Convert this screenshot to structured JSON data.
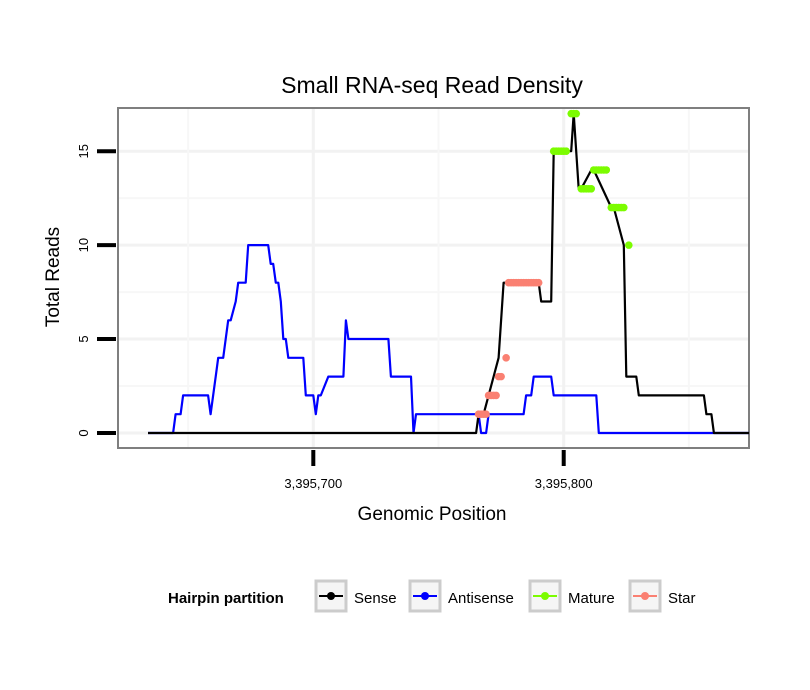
{
  "chart_data": {
    "type": "line",
    "title": "Small RNA-seq Read Density",
    "xlabel": "Genomic Position",
    "ylabel": "Total Reads",
    "xlim": [
      3395622,
      3395874
    ],
    "ylim": [
      -0.8,
      17.3
    ],
    "x_ticks": [
      {
        "value": 3395700,
        "label": "3,395,700"
      },
      {
        "value": 3395800,
        "label": "3,395,800"
      }
    ],
    "y_ticks": [
      {
        "value": 0,
        "label": "0"
      },
      {
        "value": 5,
        "label": "5"
      },
      {
        "value": 10,
        "label": "10"
      },
      {
        "value": 15,
        "label": "15"
      }
    ],
    "legend": {
      "title": "Hairpin partition",
      "position": "bottom",
      "entries": [
        {
          "label": "Sense",
          "color": "#000000"
        },
        {
          "label": "Antisense",
          "color": "#0000FF"
        },
        {
          "label": "Mature",
          "color": "#7CFC00"
        },
        {
          "label": "Star",
          "color": "#FA8072"
        }
      ]
    },
    "series": [
      {
        "name": "Sense",
        "color": "#000000",
        "x": [
          3395634,
          3395765,
          3395766,
          3395768,
          3395770,
          3395772,
          3395774,
          3395775,
          3395776,
          3395777,
          3395790,
          3395791,
          3395795,
          3395796,
          3395803,
          3395804,
          3395806,
          3395807,
          3395811,
          3395812,
          3395819,
          3395820,
          3395824,
          3395825,
          3395829,
          3395830,
          3395856,
          3395857,
          3395859,
          3395860,
          3395874
        ],
        "y": [
          0,
          0,
          1,
          1,
          2,
          3,
          4,
          6,
          8,
          8,
          8,
          7,
          7,
          15,
          15,
          17,
          13,
          13,
          14,
          14,
          12,
          12,
          10,
          3,
          3,
          2,
          2,
          1,
          1,
          0,
          0
        ]
      },
      {
        "name": "Antisense",
        "color": "#0000FF",
        "x": [
          3395634,
          3395644,
          3395645,
          3395647,
          3395648,
          3395658,
          3395659,
          3395661,
          3395662,
          3395664,
          3395665,
          3395666,
          3395667,
          3395669,
          3395670,
          3395673,
          3395674,
          3395682,
          3395683,
          3395684,
          3395685,
          3395686,
          3395687,
          3395688,
          3395689,
          3395690,
          3395691,
          3395696,
          3395697,
          3395700,
          3395701,
          3395702,
          3395703,
          3395706,
          3395707,
          3395712,
          3395713,
          3395714,
          3395715,
          3395730,
          3395731,
          3395739,
          3395740,
          3395741,
          3395766,
          3395767,
          3395769,
          3395770,
          3395784,
          3395785,
          3395787,
          3395788,
          3395795,
          3395796,
          3395797,
          3395798,
          3395813,
          3395814,
          3395874
        ],
        "y": [
          0,
          0,
          1,
          1,
          2,
          2,
          1,
          3,
          4,
          4,
          5,
          6,
          6,
          7,
          8,
          8,
          10,
          10,
          9,
          9,
          8,
          8,
          7,
          5,
          5,
          4,
          4,
          4,
          2,
          2,
          1,
          2,
          2,
          3,
          3,
          3,
          6,
          5,
          5,
          5,
          3,
          3,
          0,
          1,
          1,
          0,
          0,
          1,
          1,
          2,
          2,
          3,
          3,
          2,
          2,
          2,
          2,
          0,
          0
        ]
      },
      {
        "name": "Mature",
        "color": "#7CFC00",
        "marker_only": true,
        "x": [
          3395796,
          3395797,
          3395798,
          3395799,
          3395800,
          3395801,
          3395803,
          3395804,
          3395805,
          3395807,
          3395808,
          3395809,
          3395810,
          3395811,
          3395812,
          3395813,
          3395814,
          3395815,
          3395816,
          3395817,
          3395819,
          3395820,
          3395821,
          3395822,
          3395823,
          3395824,
          3395826
        ],
        "y": [
          15,
          15,
          15,
          15,
          15,
          15,
          17,
          17,
          17,
          13,
          13,
          13,
          13,
          13,
          14,
          14,
          14,
          14,
          14,
          14,
          12,
          12,
          12,
          12,
          12,
          12,
          10
        ]
      },
      {
        "name": "Star",
        "color": "#FA8072",
        "marker_only": true,
        "x": [
          3395766,
          3395767,
          3395768,
          3395769,
          3395770,
          3395771,
          3395772,
          3395773,
          3395774,
          3395775,
          3395777,
          3395778,
          3395779,
          3395780,
          3395781,
          3395782,
          3395783,
          3395784,
          3395785,
          3395786,
          3395787,
          3395788,
          3395789,
          3395790
        ],
        "y": [
          1,
          1,
          1,
          1,
          2,
          2,
          2,
          2,
          3,
          3,
          4,
          8,
          8,
          8,
          8,
          8,
          8,
          8,
          8,
          8,
          8,
          8,
          8,
          8
        ]
      }
    ]
  }
}
